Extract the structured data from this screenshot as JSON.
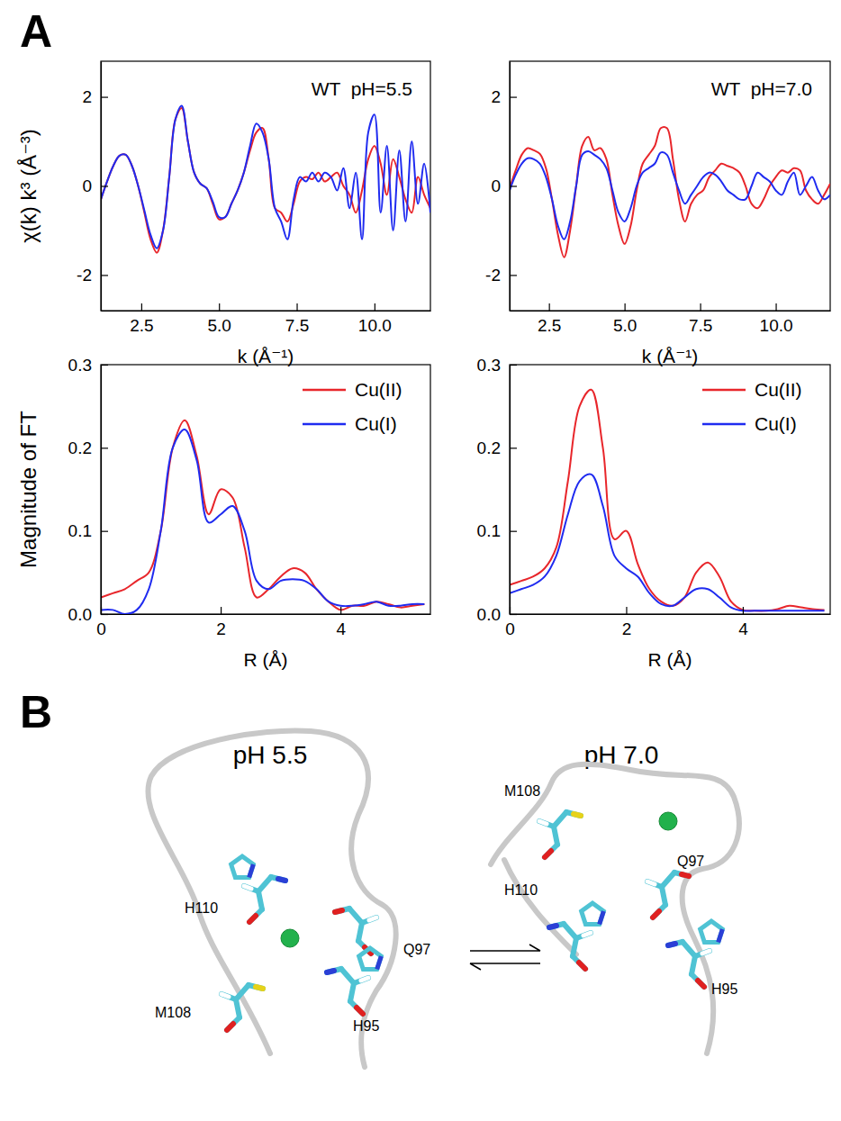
{
  "panels": [
    "A",
    "B"
  ],
  "chart_data": [
    {
      "type": "line",
      "annotation": "WT  pH=5.5",
      "x_label": "k (Å⁻¹)",
      "y_label": "χ(k) k³ (Å⁻³)",
      "x": [
        1.2,
        1.4,
        1.6,
        1.8,
        2.0,
        2.2,
        2.4,
        2.6,
        2.8,
        3.0,
        3.2,
        3.4,
        3.6,
        3.8,
        4.0,
        4.2,
        4.4,
        4.6,
        4.8,
        5.0,
        5.2,
        5.4,
        5.6,
        5.8,
        6.0,
        6.2,
        6.4,
        6.6,
        6.8,
        7.0,
        7.2,
        7.4,
        7.6,
        7.8,
        8.0,
        8.2,
        8.4,
        8.6,
        8.8,
        9.0,
        9.2,
        9.4,
        9.6,
        9.8,
        10.0,
        10.2,
        10.4,
        10.6,
        10.8,
        11.0,
        11.2,
        11.4,
        11.6,
        11.8
      ],
      "series": [
        {
          "color": "#e8262b",
          "values": [
            -0.3,
            0.1,
            0.45,
            0.68,
            0.7,
            0.45,
            0.0,
            -0.6,
            -1.2,
            -1.5,
            -1.0,
            0.2,
            1.5,
            1.75,
            1.0,
            0.3,
            0.05,
            -0.05,
            -0.4,
            -0.75,
            -0.7,
            -0.4,
            -0.1,
            0.3,
            0.8,
            1.2,
            1.3,
            0.6,
            -0.5,
            -0.6,
            -0.8,
            -0.4,
            0.1,
            0.2,
            0.15,
            0.3,
            0.1,
            0.2,
            0.3,
            0.0,
            -0.2,
            -0.6,
            -0.1,
            0.6,
            0.9,
            0.5,
            -0.2,
            0.6,
            0.2,
            -0.3,
            -0.6,
            0.2,
            -0.2,
            -0.5
          ]
        },
        {
          "color": "#1f2bf0",
          "values": [
            -0.3,
            0.1,
            0.45,
            0.68,
            0.7,
            0.45,
            0.0,
            -0.55,
            -1.1,
            -1.4,
            -1.0,
            0.2,
            1.5,
            1.8,
            1.0,
            0.3,
            0.05,
            -0.05,
            -0.35,
            -0.7,
            -0.7,
            -0.4,
            -0.1,
            0.3,
            0.9,
            1.4,
            1.2,
            0.6,
            -0.5,
            -0.8,
            -1.2,
            -0.3,
            0.2,
            0.1,
            0.3,
            0.1,
            0.3,
            0.2,
            -0.1,
            0.4,
            -0.5,
            0.3,
            -1.2,
            1.2,
            1.6,
            -0.6,
            0.9,
            -1.0,
            0.8,
            -0.8,
            1.0,
            -0.4,
            0.5,
            -0.6
          ]
        }
      ],
      "xlim": [
        1.2,
        11.8
      ],
      "ylim": [
        -2.8,
        2.8
      ],
      "xticks": [
        2.5,
        {
          "value": 5,
          "label": "5.0"
        },
        7.5,
        {
          "value": 10,
          "label": "10.0"
        }
      ],
      "yticks": [
        -2,
        0,
        2
      ]
    },
    {
      "type": "line",
      "annotation": "WT  pH=7.0",
      "x_label": "k (Å⁻¹)",
      "x": [
        1.2,
        1.4,
        1.6,
        1.8,
        2.0,
        2.2,
        2.4,
        2.6,
        2.8,
        3.0,
        3.2,
        3.4,
        3.6,
        3.8,
        4.0,
        4.2,
        4.4,
        4.6,
        4.8,
        5.0,
        5.2,
        5.4,
        5.6,
        5.8,
        6.0,
        6.2,
        6.4,
        6.6,
        6.8,
        7.0,
        7.2,
        7.4,
        7.6,
        7.8,
        8.0,
        8.2,
        8.4,
        8.6,
        8.8,
        9.0,
        9.2,
        9.4,
        9.6,
        9.8,
        10.0,
        10.2,
        10.4,
        10.6,
        10.8,
        11.0,
        11.2,
        11.4,
        11.6,
        11.8
      ],
      "series": [
        {
          "color": "#e8262b",
          "values": [
            -0.05,
            0.35,
            0.7,
            0.85,
            0.8,
            0.72,
            0.4,
            -0.3,
            -1.1,
            -1.6,
            -1.0,
            0.0,
            0.9,
            1.1,
            0.8,
            0.85,
            0.6,
            -0.2,
            -0.9,
            -1.3,
            -0.9,
            -0.1,
            0.5,
            0.7,
            0.9,
            1.3,
            1.3,
            0.6,
            -0.3,
            -0.8,
            -0.4,
            -0.2,
            -0.1,
            0.2,
            0.35,
            0.5,
            0.45,
            0.4,
            0.3,
            0.0,
            -0.4,
            -0.5,
            -0.3,
            0.0,
            0.2,
            0.35,
            0.3,
            0.4,
            0.35,
            -0.1,
            -0.3,
            -0.4,
            -0.2,
            0.05
          ]
        },
        {
          "color": "#1f2bf0",
          "values": [
            -0.1,
            0.25,
            0.5,
            0.62,
            0.6,
            0.5,
            0.2,
            -0.3,
            -0.9,
            -1.2,
            -0.8,
            0.0,
            0.7,
            0.78,
            0.7,
            0.6,
            0.4,
            -0.1,
            -0.6,
            -0.8,
            -0.5,
            0.0,
            0.3,
            0.4,
            0.5,
            0.75,
            0.7,
            0.3,
            -0.1,
            -0.4,
            -0.2,
            0.0,
            0.2,
            0.3,
            0.25,
            0.1,
            -0.1,
            -0.2,
            -0.3,
            -0.3,
            0.0,
            0.3,
            0.2,
            0.1,
            -0.1,
            -0.2,
            0.1,
            0.3,
            -0.2,
            0.0,
            0.2,
            -0.1,
            -0.3,
            -0.2
          ]
        }
      ],
      "xlim": [
        1.2,
        11.8
      ],
      "ylim": [
        -2.8,
        2.8
      ],
      "xticks": [
        2.5,
        {
          "value": 5,
          "label": "5.0"
        },
        7.5,
        {
          "value": 10,
          "label": "10.0"
        }
      ],
      "yticks": [
        -2,
        0,
        2
      ]
    },
    {
      "type": "line",
      "x_label": "R (Å)",
      "y_label": "Magnitude of FT",
      "legend": "upper right",
      "x": [
        0,
        0.2,
        0.4,
        0.6,
        0.8,
        1,
        1.2,
        1.4,
        1.6,
        1.8,
        2,
        2.2,
        2.4,
        2.6,
        2.8,
        3,
        3.2,
        3.4,
        3.6,
        3.8,
        4,
        4.2,
        4.4,
        4.6,
        4.8,
        5,
        5.2,
        5.4
      ],
      "series": [
        {
          "name": "Cu(II)",
          "color": "#e8262b",
          "values": [
            0.02,
            0.025,
            0.03,
            0.04,
            0.05,
            0.1,
            0.2,
            0.233,
            0.19,
            0.12,
            0.15,
            0.14,
            0.08,
            0.02,
            0.03,
            0.045,
            0.055,
            0.05,
            0.03,
            0.015,
            0.005,
            0.01,
            0.01,
            0.015,
            0.012,
            0.008,
            0.01,
            0.012
          ]
        },
        {
          "name": "Cu(I)",
          "color": "#1f2bf0",
          "values": [
            0.005,
            0.005,
            0.0,
            0.005,
            0.03,
            0.1,
            0.2,
            0.222,
            0.185,
            0.11,
            0.12,
            0.13,
            0.1,
            0.04,
            0.03,
            0.04,
            0.042,
            0.04,
            0.03,
            0.015,
            0.01,
            0.01,
            0.012,
            0.015,
            0.01,
            0.01,
            0.012,
            0.012
          ]
        }
      ],
      "xlim": [
        0,
        5.5
      ],
      "ylim": [
        0,
        0.3
      ],
      "xticks": [
        0,
        2,
        4
      ],
      "yticks": [
        {
          "value": 0,
          "label": "0.0"
        },
        0.1,
        0.2,
        0.3
      ]
    },
    {
      "type": "line",
      "x_label": "R (Å)",
      "legend": "upper right",
      "x": [
        0,
        0.2,
        0.4,
        0.6,
        0.8,
        1,
        1.2,
        1.4,
        1.6,
        1.8,
        2,
        2.2,
        2.4,
        2.6,
        2.8,
        3,
        3.2,
        3.4,
        3.6,
        3.8,
        4,
        4.2,
        4.4,
        4.6,
        4.8,
        5,
        5.2,
        5.4
      ],
      "series": [
        {
          "name": "Cu(II)",
          "color": "#e8262b",
          "values": [
            0.035,
            0.04,
            0.045,
            0.055,
            0.08,
            0.16,
            0.25,
            0.27,
            0.2,
            0.09,
            0.1,
            0.06,
            0.03,
            0.015,
            0.01,
            0.02,
            0.05,
            0.062,
            0.045,
            0.015,
            0.005,
            0.004,
            0.004,
            0.006,
            0.01,
            0.008,
            0.006,
            0.005
          ]
        },
        {
          "name": "Cu(I)",
          "color": "#1f2bf0",
          "values": [
            0.025,
            0.03,
            0.035,
            0.045,
            0.07,
            0.12,
            0.16,
            0.168,
            0.13,
            0.07,
            0.055,
            0.045,
            0.025,
            0.012,
            0.01,
            0.02,
            0.03,
            0.03,
            0.02,
            0.008,
            0.004,
            0.004,
            0.004,
            0.004,
            0.004,
            0.004,
            0.004,
            0.004
          ]
        }
      ],
      "xlim": [
        0,
        5.5
      ],
      "ylim": [
        0,
        0.3
      ],
      "xticks": [
        0,
        2,
        4
      ],
      "yticks": [
        {
          "value": 0,
          "label": "0.0"
        },
        0.1,
        0.2,
        0.3
      ]
    }
  ],
  "diagram": {
    "states": [
      {
        "title": "pH 5.5",
        "residues": [
          "H110",
          "Q97",
          "M108",
          "H95"
        ]
      },
      {
        "title": "pH 7.0",
        "residues": [
          "M108",
          "H110",
          "Q97",
          "H95"
        ]
      }
    ]
  }
}
